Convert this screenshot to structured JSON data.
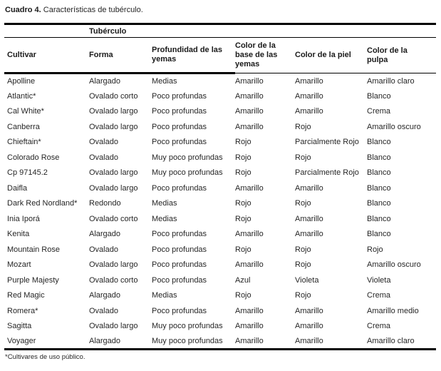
{
  "caption": {
    "label": "Cuadro 4.",
    "text": " Características de tubérculo."
  },
  "table": {
    "spanner_label": "Tubérculo",
    "columns": [
      "Cultivar",
      "Forma",
      "Profundidad de las yemas",
      "Color de la base de las yemas",
      "Color de la piel",
      "Color de la pulpa"
    ],
    "rows": [
      [
        "Apolline",
        "Alargado",
        "Medias",
        "Amarillo",
        "Amarillo",
        "Amarillo claro"
      ],
      [
        "Atlantic*",
        "Ovalado corto",
        "Poco profundas",
        "Amarillo",
        "Amarillo",
        "Blanco"
      ],
      [
        "Cal White*",
        "Ovalado largo",
        "Poco profundas",
        "Amarillo",
        "Amarillo",
        "Crema"
      ],
      [
        "Canberra",
        "Ovalado largo",
        "Poco profundas",
        "Amarillo",
        "Rojo",
        "Amarillo oscuro"
      ],
      [
        "Chieftain*",
        "Ovalado",
        "Poco profundas",
        "Rojo",
        "Parcialmente Rojo",
        "Blanco"
      ],
      [
        "Colorado Rose",
        "Ovalado",
        "Muy poco profundas",
        "Rojo",
        "Rojo",
        "Blanco"
      ],
      [
        "Cp 97145.2",
        "Ovalado largo",
        "Muy poco profundas",
        "Rojo",
        "Parcialmente Rojo",
        "Blanco"
      ],
      [
        "Daifla",
        "Ovalado largo",
        "Poco profundas",
        "Amarillo",
        "Amarillo",
        "Blanco"
      ],
      [
        "Dark Red Nordland*",
        "Redondo",
        "Medias",
        "Rojo",
        "Rojo",
        "Blanco"
      ],
      [
        "Inia Iporá",
        "Ovalado corto",
        "Medias",
        "Rojo",
        "Amarillo",
        "Blanco"
      ],
      [
        "Kenita",
        "Alargado",
        "Poco profundas",
        "Amarillo",
        "Amarillo",
        "Blanco"
      ],
      [
        "Mountain Rose",
        "Ovalado",
        "Poco profundas",
        "Rojo",
        "Rojo",
        "Rojo"
      ],
      [
        "Mozart",
        "Ovalado largo",
        "Poco profundas",
        "Amarillo",
        "Rojo",
        "Amarillo oscuro"
      ],
      [
        "Purple Majesty",
        "Ovalado corto",
        "Poco profundas",
        "Azul",
        "Violeta",
        "Violeta"
      ],
      [
        "Red Magic",
        "Alargado",
        "Medias",
        "Rojo",
        "Rojo",
        "Crema"
      ],
      [
        "Romera*",
        "Ovalado",
        "Poco profundas",
        "Amarillo",
        "Amarillo",
        "Amarillo medio"
      ],
      [
        "Sagitta",
        "Ovalado largo",
        "Muy poco profundas",
        "Amarillo",
        "Amarillo",
        "Crema"
      ],
      [
        "Voyager",
        "Alargado",
        "Muy poco profundas",
        "Amarillo",
        "Amarillo",
        "Amarillo claro"
      ]
    ]
  },
  "footnote": "*Cultivares de uso público.",
  "colors": {
    "text": "#262626",
    "line": "#000000",
    "background": "#ffffff"
  }
}
